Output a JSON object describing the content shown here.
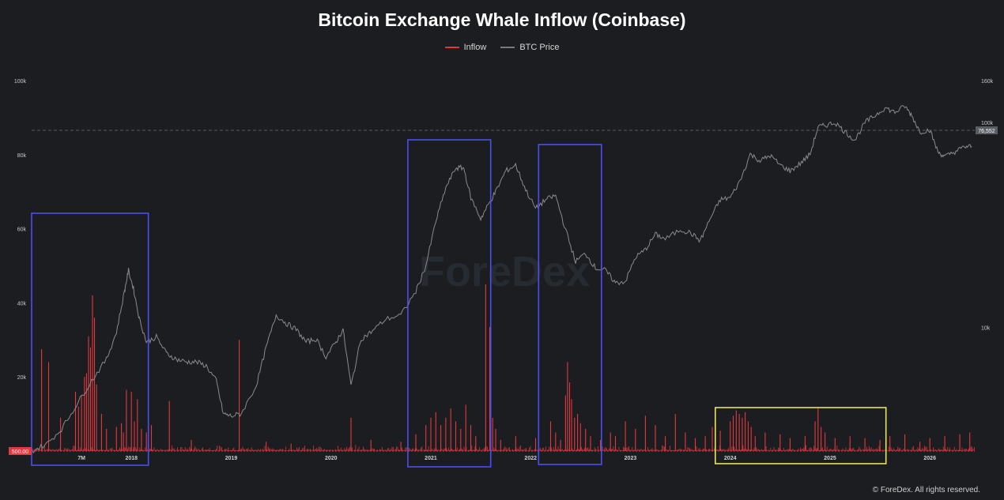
{
  "title": "Bitcoin Exchange Whale Inflow (Coinbase)",
  "legend": [
    {
      "label": "Inflow",
      "color": "#e0393e"
    },
    {
      "label": "BTC Price",
      "color": "#7a7a7a"
    }
  ],
  "watermark": "ForeDex",
  "footer": "© ForeDex. All rights reserved.",
  "chart_data": {
    "type": "bar",
    "title": "Bitcoin Exchange Whale Inflow (Coinbase)",
    "left_axis": {
      "ticks": [
        "100k",
        "80k",
        "60k",
        "40k",
        "20k"
      ],
      "values": [
        100000,
        80000,
        60000,
        40000,
        20000
      ],
      "min": 0,
      "max": 100000
    },
    "right_axis": {
      "scale": "log",
      "ticks": [
        "160k",
        "100k",
        "10k"
      ],
      "values": [
        160000,
        100000,
        10000
      ],
      "min": 2500,
      "max": 160000
    },
    "x_ticks": [
      "7M",
      "2018",
      "2019",
      "2020",
      "2021",
      "2022",
      "2023",
      "2024",
      "2025",
      "2026"
    ],
    "x_tick_dates": [
      2017.5,
      2018.0,
      2019.0,
      2020.0,
      2021.0,
      2022.0,
      2023.0,
      2024.0,
      2025.0,
      2026.0
    ],
    "x_range": [
      2017.0,
      2026.45
    ],
    "baseline_label": "500.00",
    "price_label": "76,552",
    "price_last": 76552,
    "series": [
      {
        "name": "BTC Price",
        "color": "#7a7a7a",
        "points": [
          [
            2017.0,
            2500
          ],
          [
            2017.15,
            2700
          ],
          [
            2017.3,
            3200
          ],
          [
            2017.45,
            4200
          ],
          [
            2017.6,
            5500
          ],
          [
            2017.75,
            7000
          ],
          [
            2017.85,
            9500
          ],
          [
            2017.93,
            15000
          ],
          [
            2017.97,
            19000
          ],
          [
            2018.02,
            15500
          ],
          [
            2018.08,
            11000
          ],
          [
            2018.15,
            8500
          ],
          [
            2018.25,
            9000
          ],
          [
            2018.35,
            7500
          ],
          [
            2018.45,
            7000
          ],
          [
            2018.55,
            6800
          ],
          [
            2018.65,
            6800
          ],
          [
            2018.75,
            6500
          ],
          [
            2018.85,
            5500
          ],
          [
            2018.92,
            3800
          ],
          [
            2019.0,
            3700
          ],
          [
            2019.1,
            3800
          ],
          [
            2019.25,
            5200
          ],
          [
            2019.35,
            8000
          ],
          [
            2019.45,
            11500
          ],
          [
            2019.55,
            10500
          ],
          [
            2019.65,
            9800
          ],
          [
            2019.75,
            8500
          ],
          [
            2019.85,
            8800
          ],
          [
            2019.95,
            7200
          ],
          [
            2020.05,
            8500
          ],
          [
            2020.12,
            9800
          ],
          [
            2020.2,
            5200
          ],
          [
            2020.3,
            8800
          ],
          [
            2020.4,
            9500
          ],
          [
            2020.55,
            11000
          ],
          [
            2020.7,
            11500
          ],
          [
            2020.85,
            15000
          ],
          [
            2020.95,
            20000
          ],
          [
            2021.05,
            33000
          ],
          [
            2021.15,
            48000
          ],
          [
            2021.25,
            60000
          ],
          [
            2021.33,
            60000
          ],
          [
            2021.4,
            43000
          ],
          [
            2021.5,
            34000
          ],
          [
            2021.58,
            40000
          ],
          [
            2021.66,
            47000
          ],
          [
            2021.75,
            58000
          ],
          [
            2021.85,
            62000
          ],
          [
            2021.95,
            47000
          ],
          [
            2022.05,
            38000
          ],
          [
            2022.15,
            42000
          ],
          [
            2022.25,
            44000
          ],
          [
            2022.35,
            30000
          ],
          [
            2022.45,
            21000
          ],
          [
            2022.55,
            23000
          ],
          [
            2022.65,
            19500
          ],
          [
            2022.75,
            19000
          ],
          [
            2022.85,
            16500
          ],
          [
            2022.95,
            16800
          ],
          [
            2023.05,
            22000
          ],
          [
            2023.15,
            24000
          ],
          [
            2023.25,
            28500
          ],
          [
            2023.35,
            27000
          ],
          [
            2023.5,
            30000
          ],
          [
            2023.6,
            29000
          ],
          [
            2023.7,
            26500
          ],
          [
            2023.8,
            34000
          ],
          [
            2023.9,
            42000
          ],
          [
            2024.0,
            43000
          ],
          [
            2024.1,
            52000
          ],
          [
            2024.2,
            70000
          ],
          [
            2024.3,
            65000
          ],
          [
            2024.4,
            69000
          ],
          [
            2024.5,
            62000
          ],
          [
            2024.6,
            58000
          ],
          [
            2024.7,
            63000
          ],
          [
            2024.8,
            70000
          ],
          [
            2024.88,
            95000
          ],
          [
            2024.96,
            97000
          ],
          [
            2025.05,
            100000
          ],
          [
            2025.15,
            90000
          ],
          [
            2025.25,
            82000
          ],
          [
            2025.35,
            100000
          ],
          [
            2025.45,
            108000
          ],
          [
            2025.55,
            118000
          ],
          [
            2025.65,
            112000
          ],
          [
            2025.75,
            120000
          ],
          [
            2025.82,
            108000
          ],
          [
            2025.9,
            90000
          ],
          [
            2026.0,
            92000
          ],
          [
            2026.08,
            72000
          ],
          [
            2026.15,
            68000
          ],
          [
            2026.25,
            72000
          ],
          [
            2026.35,
            76000
          ],
          [
            2026.42,
            76552
          ]
        ]
      },
      {
        "name": "Inflow",
        "color": "#e0393e",
        "spikes": [
          [
            2017.1,
            27500
          ],
          [
            2017.17,
            24000
          ],
          [
            2017.29,
            9000
          ],
          [
            2017.44,
            16000
          ],
          [
            2017.47,
            12000
          ],
          [
            2017.5,
            15000
          ],
          [
            2017.53,
            20000
          ],
          [
            2017.55,
            21000
          ],
          [
            2017.57,
            31000
          ],
          [
            2017.59,
            28000
          ],
          [
            2017.61,
            42000
          ],
          [
            2017.63,
            36000
          ],
          [
            2017.65,
            18000
          ],
          [
            2017.7,
            10000
          ],
          [
            2017.75,
            6000
          ],
          [
            2017.85,
            6500
          ],
          [
            2017.9,
            7500
          ],
          [
            2017.92,
            5000
          ],
          [
            2017.95,
            16500
          ],
          [
            2018.0,
            16000
          ],
          [
            2018.03,
            8000
          ],
          [
            2018.06,
            14000
          ],
          [
            2018.1,
            6000
          ],
          [
            2018.15,
            5000
          ],
          [
            2018.2,
            7000
          ],
          [
            2018.38,
            13500
          ],
          [
            2018.6,
            3000
          ],
          [
            2019.08,
            30000
          ],
          [
            2019.35,
            2500
          ],
          [
            2019.6,
            2000
          ],
          [
            2020.2,
            9000
          ],
          [
            2020.4,
            3000
          ],
          [
            2020.7,
            2500
          ],
          [
            2020.85,
            4500
          ],
          [
            2020.95,
            7000
          ],
          [
            2021.0,
            9000
          ],
          [
            2021.05,
            10500
          ],
          [
            2021.1,
            7000
          ],
          [
            2021.15,
            9000
          ],
          [
            2021.2,
            11500
          ],
          [
            2021.25,
            8000
          ],
          [
            2021.3,
            6000
          ],
          [
            2021.35,
            12500
          ],
          [
            2021.4,
            7000
          ],
          [
            2021.45,
            4000
          ],
          [
            2021.55,
            45000
          ],
          [
            2021.59,
            33500
          ],
          [
            2021.62,
            9000
          ],
          [
            2021.65,
            6000
          ],
          [
            2021.7,
            3000
          ],
          [
            2021.85,
            4000
          ],
          [
            2022.05,
            3500
          ],
          [
            2022.2,
            8000
          ],
          [
            2022.25,
            5000
          ],
          [
            2022.3,
            3000
          ],
          [
            2022.35,
            15000
          ],
          [
            2022.37,
            24000
          ],
          [
            2022.39,
            18500
          ],
          [
            2022.41,
            14000
          ],
          [
            2022.44,
            9000
          ],
          [
            2022.47,
            10000
          ],
          [
            2022.5,
            7500
          ],
          [
            2022.55,
            6000
          ],
          [
            2022.6,
            4000
          ],
          [
            2022.7,
            3000
          ],
          [
            2022.8,
            5000
          ],
          [
            2022.85,
            4000
          ],
          [
            2022.95,
            8000
          ],
          [
            2023.05,
            6000
          ],
          [
            2023.15,
            9500
          ],
          [
            2023.25,
            7000
          ],
          [
            2023.35,
            4000
          ],
          [
            2023.45,
            10000
          ],
          [
            2023.55,
            5000
          ],
          [
            2023.65,
            3500
          ],
          [
            2023.75,
            4000
          ],
          [
            2023.82,
            6500
          ],
          [
            2023.9,
            5500
          ],
          [
            2024.0,
            8000
          ],
          [
            2024.03,
            9500
          ],
          [
            2024.06,
            11000
          ],
          [
            2024.09,
            10000
          ],
          [
            2024.12,
            9000
          ],
          [
            2024.15,
            10500
          ],
          [
            2024.18,
            8000
          ],
          [
            2024.21,
            6500
          ],
          [
            2024.25,
            4000
          ],
          [
            2024.35,
            5000
          ],
          [
            2024.5,
            4500
          ],
          [
            2024.6,
            3500
          ],
          [
            2024.75,
            4000
          ],
          [
            2024.85,
            8000
          ],
          [
            2024.88,
            11500
          ],
          [
            2024.91,
            6500
          ],
          [
            2024.95,
            5000
          ],
          [
            2025.05,
            3500
          ],
          [
            2025.2,
            4000
          ],
          [
            2025.35,
            3500
          ],
          [
            2025.5,
            3000
          ],
          [
            2025.6,
            4000
          ],
          [
            2025.75,
            4500
          ],
          [
            2025.9,
            2500
          ],
          [
            2026.0,
            3500
          ],
          [
            2026.15,
            4000
          ],
          [
            2026.3,
            4500
          ],
          [
            2026.4,
            5000
          ]
        ]
      }
    ],
    "annotations": [
      {
        "type": "rect",
        "color": "#4b4ff0",
        "x_range": [
          2017.0,
          2018.17
        ]
      },
      {
        "type": "rect",
        "color": "#4b4ff0",
        "x_range": [
          2020.77,
          2021.6
        ]
      },
      {
        "type": "rect",
        "color": "#4b4ff0",
        "x_range": [
          2022.08,
          2022.71
        ]
      },
      {
        "type": "rect",
        "color": "#e8e35a",
        "x_range": [
          2023.85,
          2025.56
        ]
      }
    ]
  }
}
